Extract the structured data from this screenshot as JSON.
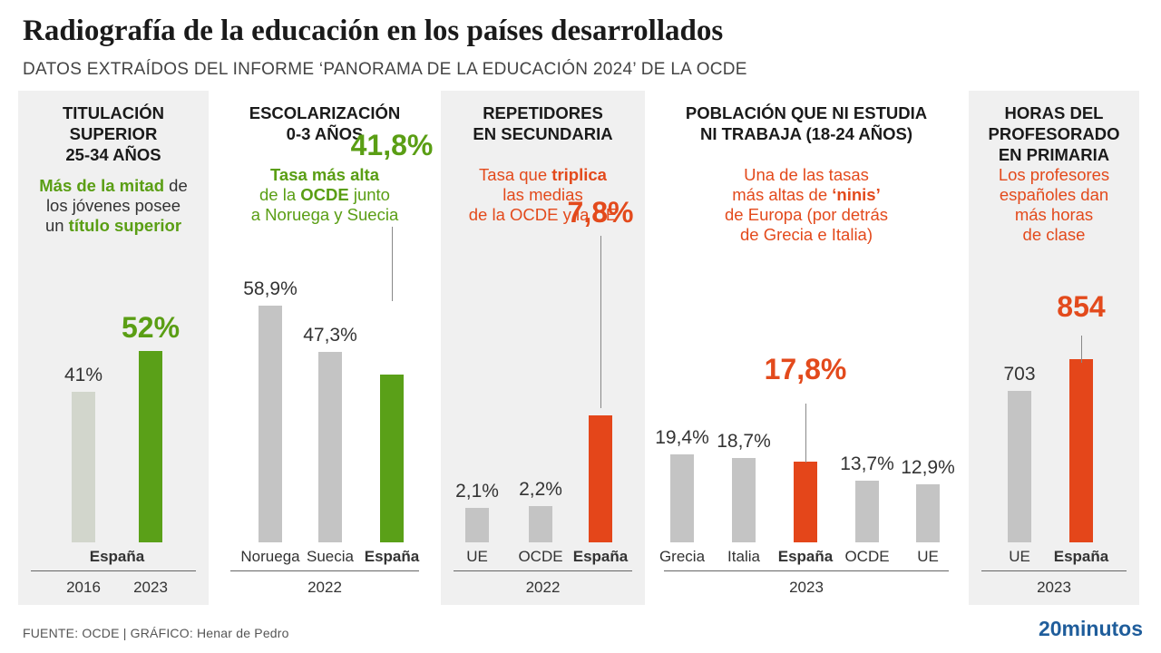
{
  "header": {
    "title": "Radiografía de la educación en los países desarrollados",
    "subtitle": "DATOS EXTRAÍDOS DEL INFORME ‘PANORAMA DE LA EDUCACIÓN 2024’ DE LA OCDE"
  },
  "footer": {
    "source": "FUENTE: OCDE  |  GRÁFICO: Henar de Pedro",
    "brand": "20minutos"
  },
  "colors": {
    "green": "#5aa018",
    "orange": "#e4461a",
    "gray": "#c4c4c4",
    "brand": "#1f5d9b"
  },
  "chart_data": [
    {
      "type": "bar",
      "title": "TITULACIÓN SUPERIOR 25-34 AÑOS",
      "note": "Más de la mitad de los jóvenes posee un título superior",
      "categories": [
        "2016",
        "2023"
      ],
      "category_group_label": "España",
      "values": [
        41,
        52
      ],
      "value_labels": [
        "41%",
        "52%"
      ],
      "unit": "%",
      "ylim": [
        0,
        70
      ]
    },
    {
      "type": "bar",
      "title": "ESCOLARIZACIÓN 0-3 AÑOS",
      "note": "Tasa más alta de la OCDE junto a Noruega y Suecia",
      "categories": [
        "Noruega",
        "Suecia",
        "España"
      ],
      "values": [
        58.9,
        47.3,
        41.8
      ],
      "value_labels": [
        "58,9%",
        "47,3%",
        "41,8%"
      ],
      "year": "2022",
      "unit": "%",
      "ylim": [
        0,
        70
      ]
    },
    {
      "type": "bar",
      "title": "REPETIDORES EN SECUNDARIA",
      "note": "Tasa que triplica las medias de la OCDE y la UE",
      "categories": [
        "UE",
        "OCDE",
        "España"
      ],
      "values": [
        2.1,
        2.2,
        7.8
      ],
      "value_labels": [
        "2,1%",
        "2,2%",
        "7,8%"
      ],
      "year": "2022",
      "unit": "%",
      "ylim": [
        0,
        20
      ]
    },
    {
      "type": "bar",
      "title": "POBLACIÓN QUE NI ESTUDIA NI TRABAJA (18-24 AÑOS)",
      "note": "Una de las tasas más altas de ‘ninis’ de Europa (por detrás de Grecia e Italia)",
      "categories": [
        "Grecia",
        "Italia",
        "España",
        "OCDE",
        "UE"
      ],
      "values": [
        19.4,
        18.7,
        17.8,
        13.7,
        12.9
      ],
      "value_labels": [
        "19,4%",
        "18,7%",
        "17,8%",
        "13,7%",
        "12,9%"
      ],
      "year": "2023",
      "unit": "%",
      "ylim": [
        0,
        45
      ]
    },
    {
      "type": "bar",
      "title": "HORAS DEL PROFESORADO EN PRIMARIA",
      "note": "Los profesores españoles dan más horas de clase",
      "categories": [
        "UE",
        "España"
      ],
      "values": [
        703,
        854
      ],
      "value_labels": [
        "703",
        "854"
      ],
      "year": "2023",
      "unit": "horas",
      "ylim": [
        0,
        1200
      ]
    }
  ],
  "panel_text": {
    "p1": {
      "t1": "TITULACIÓN",
      "t2": "SUPERIOR",
      "t3": "25-34 AÑOS",
      "n1a": "Más de la mitad",
      "n1b": " de",
      "n2": "los jóvenes posee",
      "n3a": "un ",
      "n3b": "título superior"
    },
    "p2": {
      "t1": "ESCOLARIZACIÓN",
      "t2": "0-3 AÑOS",
      "n1": "Tasa más alta",
      "n2a": "de la ",
      "n2b": "OCDE",
      "n2c": " junto",
      "n3": "a Noruega y Suecia"
    },
    "p3": {
      "t1": "REPETIDORES",
      "t2": "EN SECUNDARIA",
      "n1a": "Tasa que ",
      "n1b": "triplica",
      "n2": "las medias",
      "n3": "de la OCDE y la UE"
    },
    "p4": {
      "t1": "POBLACIÓN QUE NI ESTUDIA",
      "t2": "NI TRABAJA (18-24 AÑOS)",
      "n1": "Una de las tasas",
      "n2a": "más altas de ",
      "n2b": "‘ninis’",
      "n3": "de Europa (por detrás",
      "n4": "de Grecia e Italia)"
    },
    "p5": {
      "t1": "HORAS DEL",
      "t2": "PROFESORADO",
      "t3": "EN PRIMARIA",
      "n1": "Los profesores",
      "n2": "españoles dan",
      "n3": "más horas",
      "n4": "de clase"
    }
  }
}
